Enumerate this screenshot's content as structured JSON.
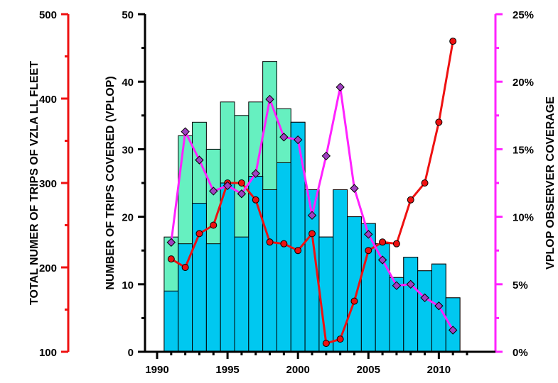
{
  "chart_data": {
    "type": "bar",
    "colors": {
      "bars_total": "#66f0c0",
      "bars_covered": "#00c8f0",
      "fleet_line": "#ee1111",
      "coverage_line": "#ff22ff",
      "coverage_marker": "#a040c0",
      "axis_left": "#ee1111",
      "axis_right": "#ff22ff",
      "axis_main": "#000000"
    },
    "x_axis": {
      "range": [
        1990,
        2012
      ],
      "ticks": [
        "1990",
        "1995",
        "2000",
        "2005",
        "2010"
      ],
      "tick_values": [
        1990,
        1995,
        2000,
        2005,
        2010
      ]
    },
    "y_left_outer": {
      "label": "TOTAL NUMER OF TRIPS OF VZLA LL FLEET",
      "range": [
        100,
        500
      ],
      "ticks": [
        "100",
        "200",
        "300",
        "400",
        "500"
      ],
      "tick_values": [
        100,
        200,
        300,
        400,
        500
      ]
    },
    "y_left": {
      "label": "NUMBER OF TRIPS COVERED (VPLOP)",
      "range": [
        0,
        50
      ],
      "ticks": [
        "0",
        "10",
        "20",
        "30",
        "40",
        "50"
      ],
      "tick_values": [
        0,
        10,
        20,
        30,
        40,
        50
      ]
    },
    "y_right": {
      "label": "VPLOP OBSERVER COVERAGE",
      "range": [
        0,
        25
      ],
      "ticks": [
        "0%",
        "5%",
        "10%",
        "15%",
        "20%",
        "25%"
      ],
      "tick_values": [
        0,
        5,
        10,
        15,
        20,
        25
      ]
    },
    "categories": [
      1991,
      1992,
      1993,
      1994,
      1995,
      1996,
      1997,
      1998,
      1999,
      2000,
      2001,
      2002,
      2003,
      2004,
      2005,
      2006,
      2007,
      2008,
      2009,
      2010,
      2011
    ],
    "series": [
      {
        "kind": "bar",
        "axis": "y_left",
        "values": [
          17,
          32,
          34,
          30,
          37,
          35,
          37,
          43,
          36,
          34,
          24,
          17,
          24,
          20,
          19,
          16,
          11,
          14,
          12,
          13,
          8
        ]
      },
      {
        "kind": "bar",
        "axis": "y_left",
        "values": [
          9,
          16,
          22,
          16,
          25,
          17,
          26,
          24,
          28,
          34,
          24,
          17,
          24,
          20,
          19,
          16,
          11,
          14,
          12,
          13,
          8
        ]
      },
      {
        "kind": "line",
        "axis": "y_left_outer",
        "values": [
          210,
          200,
          240,
          250,
          300,
          300,
          280,
          230,
          228,
          220,
          240,
          110,
          115,
          160,
          220,
          230,
          228,
          280,
          300,
          372,
          468
        ]
      },
      {
        "kind": "line",
        "axis": "y_right",
        "values": [
          8.1,
          16.3,
          14.2,
          11.9,
          12.3,
          11.7,
          13.2,
          18.7,
          15.9,
          15.7,
          10.1,
          14.5,
          19.6,
          12.1,
          8.7,
          6.8,
          4.9,
          5.0,
          4.0,
          3.4,
          1.6
        ]
      }
    ]
  }
}
